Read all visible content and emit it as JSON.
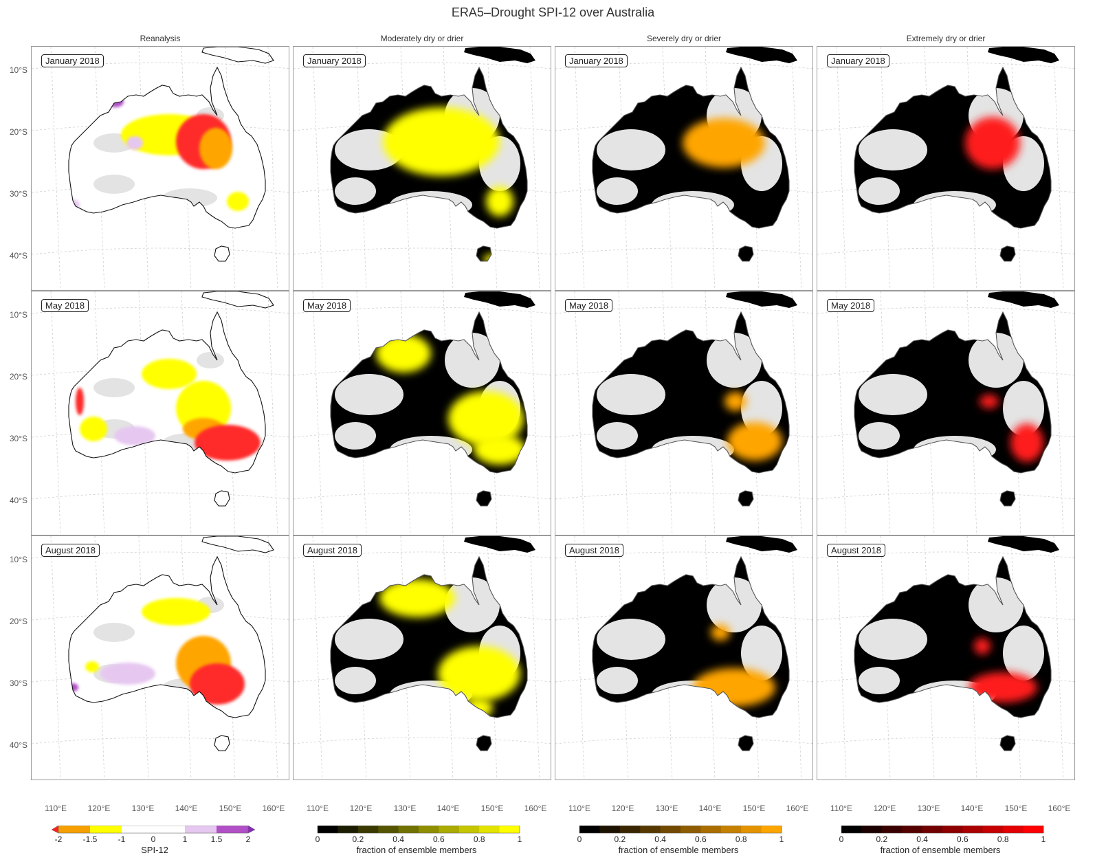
{
  "figure": {
    "title": "ERA5–Drought SPI-12 over Australia"
  },
  "columns": [
    {
      "title": "Reanalysis",
      "kind": "spi"
    },
    {
      "title": "Moderately dry or drier",
      "kind": "yellow"
    },
    {
      "title": "Severely dry or drier",
      "kind": "orange"
    },
    {
      "title": "Extremely dry or drier",
      "kind": "red"
    }
  ],
  "rows": [
    {
      "label": "January 2018"
    },
    {
      "label": "May 2018"
    },
    {
      "label": "August 2018"
    }
  ],
  "axes": {
    "lat_ticks": [
      "10°S",
      "20°S",
      "30°S",
      "40°S"
    ],
    "lon_ticks": [
      "110°E",
      "120°E",
      "130°E",
      "140°E",
      "150°E",
      "160°E"
    ]
  },
  "colorbars": [
    {
      "label": "SPI-12",
      "ticks": [
        "-2",
        "-1.5",
        "-1",
        "0",
        "1",
        "1.5",
        "2"
      ],
      "colors": [
        "#f5a000",
        "#ffff00",
        "#ffffff",
        "#e6c7f0",
        "#b04fc6"
      ],
      "extend_colors": [
        "#ff2020",
        "#8a2bb8"
      ]
    },
    {
      "label": "fraction of ensemble members",
      "ticks": [
        "0",
        "0.2",
        "0.4",
        "0.6",
        "0.8",
        "1"
      ],
      "end_color": "#ffff00"
    },
    {
      "label": "fraction of ensemble members",
      "ticks": [
        "0",
        "0.2",
        "0.4",
        "0.6",
        "0.8",
        "1"
      ],
      "end_color": "#ffa500"
    },
    {
      "label": "fraction of ensemble members",
      "ticks": [
        "0",
        "0.2",
        "0.4",
        "0.6",
        "0.8",
        "1"
      ],
      "end_color": "#ff0000"
    }
  ],
  "chart_data": {
    "type": "heatmap",
    "title": "ERA5–Drought SPI-12 over Australia",
    "region": "Australia",
    "x_axis": {
      "ticks": [
        "110°E",
        "120°E",
        "130°E",
        "140°E",
        "150°E",
        "160°E"
      ],
      "range_deg": [
        104,
        162
      ]
    },
    "y_axis": {
      "ticks": [
        "10°S",
        "20°S",
        "30°S",
        "40°S"
      ],
      "range_deg": [
        -46,
        -6
      ]
    },
    "grid": true,
    "panels": [
      {
        "row": "January 2018",
        "column": "Reanalysis",
        "main_signal": "SPI-12 -1 to -2 across central/north-east interior"
      },
      {
        "row": "January 2018",
        "column": "Moderately dry or drier",
        "main_signal": "fraction ~1 over central interior"
      },
      {
        "row": "January 2018",
        "column": "Severely dry or drier",
        "main_signal": "fraction ~1 over east-central interior"
      },
      {
        "row": "January 2018",
        "column": "Extremely dry or drier",
        "main_signal": "fraction ~1 over north-east interior"
      },
      {
        "row": "May 2018",
        "column": "Reanalysis",
        "main_signal": "SPI-12 -1 to -2 over south-east"
      },
      {
        "row": "May 2018",
        "column": "Moderately dry or drier",
        "main_signal": "fraction ~1 over east and south-east"
      },
      {
        "row": "May 2018",
        "column": "Severely dry or drier",
        "main_signal": "fraction ~1 over south-east"
      },
      {
        "row": "May 2018",
        "column": "Extremely dry or drier",
        "main_signal": "fraction ~1 over far south-east"
      },
      {
        "row": "August 2018",
        "column": "Reanalysis",
        "main_signal": "SPI-12 -1.5 to -2 over south-east"
      },
      {
        "row": "August 2018",
        "column": "Moderately dry or drier",
        "main_signal": "fraction ~1 over north and south-east"
      },
      {
        "row": "August 2018",
        "column": "Severely dry or drier",
        "main_signal": "fraction ~1 over south-east"
      },
      {
        "row": "August 2018",
        "column": "Extremely dry or drier",
        "main_signal": "fraction ~1 over south-east"
      }
    ]
  }
}
